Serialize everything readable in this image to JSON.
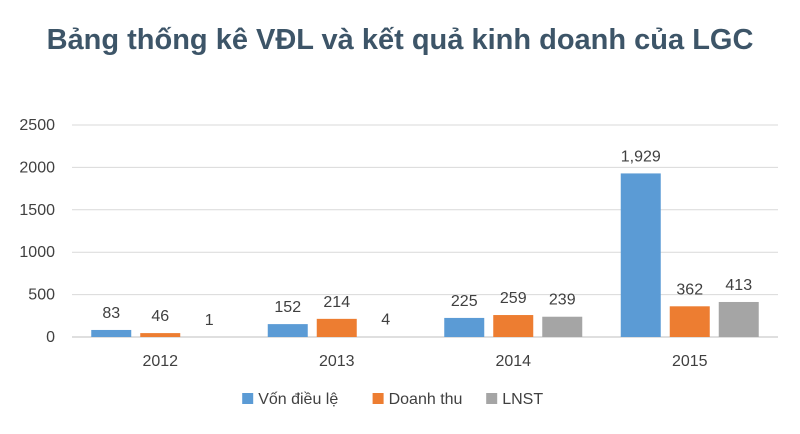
{
  "chart_data": {
    "type": "bar",
    "title": "Bảng thống kê VĐL và kết quả kinh doanh của LGC",
    "categories": [
      "2012",
      "2013",
      "2014",
      "2015"
    ],
    "series": [
      {
        "name": "Vốn điều lệ",
        "values": [
          83,
          152,
          225,
          1929
        ],
        "labels": [
          "83",
          "152",
          "225",
          "1,929"
        ],
        "color": "#5b9bd5"
      },
      {
        "name": "Doanh thu",
        "values": [
          46,
          214,
          259,
          362
        ],
        "labels": [
          "46",
          "214",
          "259",
          "362"
        ],
        "color": "#ed7d31"
      },
      {
        "name": "LNST",
        "values": [
          1,
          4,
          239,
          413
        ],
        "labels": [
          "1",
          "4",
          "239",
          "413"
        ],
        "color": "#a5a5a5"
      }
    ],
    "yticks": [
      "0",
      "500",
      "1000",
      "1500",
      "2000",
      "2500"
    ],
    "ylim": [
      0,
      2500
    ],
    "grid": true,
    "legend_position": "bottom"
  }
}
